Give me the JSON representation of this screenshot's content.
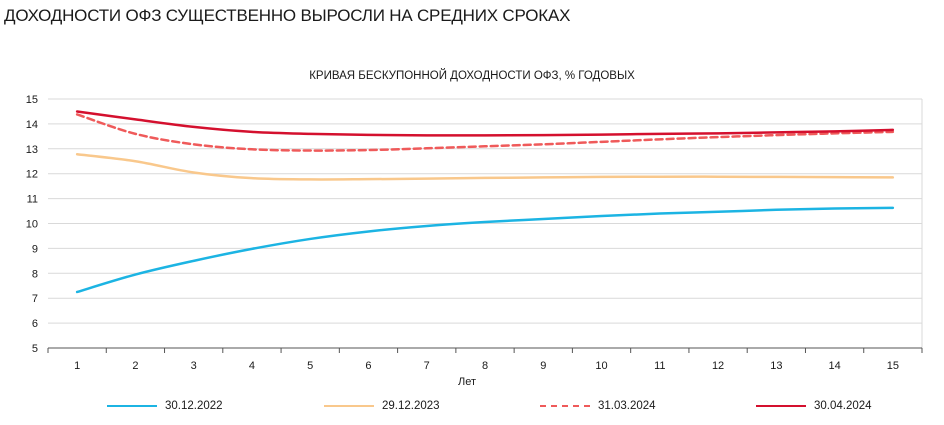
{
  "page_title": "ДОХОДНОСТИ ОФЗ СУЩЕСТВЕННО ВЫРОСЛИ НА СРЕДНИХ СРОКАХ",
  "chart_data": {
    "type": "line",
    "title": "КРИВАЯ БЕСКУПОННОЙ ДОХОДНОСТИ ОФЗ, % ГОДОВЫХ",
    "xlabel": "Лет",
    "ylabel": "",
    "x": [
      1,
      2,
      3,
      4,
      5,
      6,
      7,
      8,
      9,
      10,
      11,
      12,
      13,
      14,
      15
    ],
    "ylim": [
      5,
      15
    ],
    "yticks": [
      5,
      6,
      7,
      8,
      9,
      10,
      11,
      12,
      13,
      14,
      15
    ],
    "grid": true,
    "legend_position": "bottom",
    "series": [
      {
        "name": "30.12.2022",
        "color": "#1cb4e3",
        "style": "solid",
        "values": [
          7.25,
          7.95,
          8.5,
          8.98,
          9.38,
          9.68,
          9.9,
          10.06,
          10.18,
          10.3,
          10.4,
          10.47,
          10.55,
          10.6,
          10.63
        ]
      },
      {
        "name": "29.12.2023",
        "color": "#f9c88c",
        "style": "solid",
        "values": [
          12.78,
          12.5,
          12.05,
          11.82,
          11.77,
          11.78,
          11.8,
          11.83,
          11.85,
          11.87,
          11.88,
          11.88,
          11.87,
          11.86,
          11.85
        ]
      },
      {
        "name": "31.03.2024",
        "color": "#ef5a5a",
        "style": "dashed",
        "values": [
          14.38,
          13.6,
          13.18,
          12.98,
          12.93,
          12.95,
          13.02,
          13.1,
          13.18,
          13.28,
          13.38,
          13.47,
          13.55,
          13.62,
          13.68
        ]
      },
      {
        "name": "30.04.2024",
        "color": "#d4102e",
        "style": "solid",
        "values": [
          14.5,
          14.18,
          13.88,
          13.68,
          13.6,
          13.56,
          13.54,
          13.54,
          13.55,
          13.57,
          13.6,
          13.62,
          13.66,
          13.7,
          13.76
        ]
      }
    ]
  }
}
